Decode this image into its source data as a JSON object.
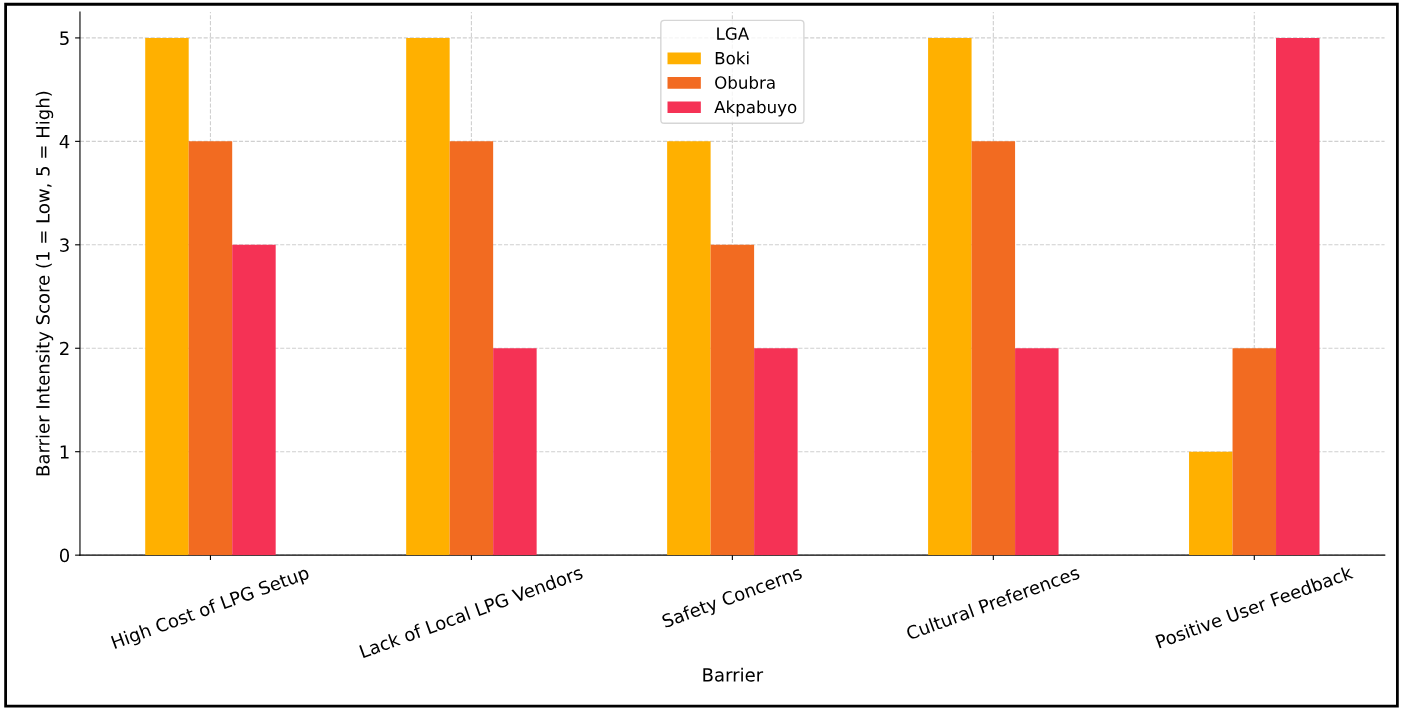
{
  "chart_data": {
    "type": "bar",
    "categories": [
      "High Cost of LPG Setup",
      "Lack of Local LPG Vendors",
      "Safety Concerns",
      "Cultural Preferences",
      "Positive User Feedback"
    ],
    "series": [
      {
        "name": "Boki",
        "color": "#ffb000",
        "values": [
          5,
          5,
          4,
          5,
          1
        ]
      },
      {
        "name": "Obubra",
        "color": "#f26b21",
        "values": [
          4,
          4,
          3,
          4,
          2
        ]
      },
      {
        "name": "Akpabuyo",
        "color": "#f53255",
        "values": [
          3,
          2,
          2,
          2,
          5
        ]
      }
    ],
    "xlabel": "Barrier",
    "ylabel": "Barrier Intensity Score (1 = Low, 5 = High)",
    "legend_title": "LGA",
    "ylim": [
      0,
      5.25
    ],
    "yticks": [
      0,
      1,
      2,
      3,
      4,
      5
    ],
    "grid": true,
    "legend": "top center"
  }
}
